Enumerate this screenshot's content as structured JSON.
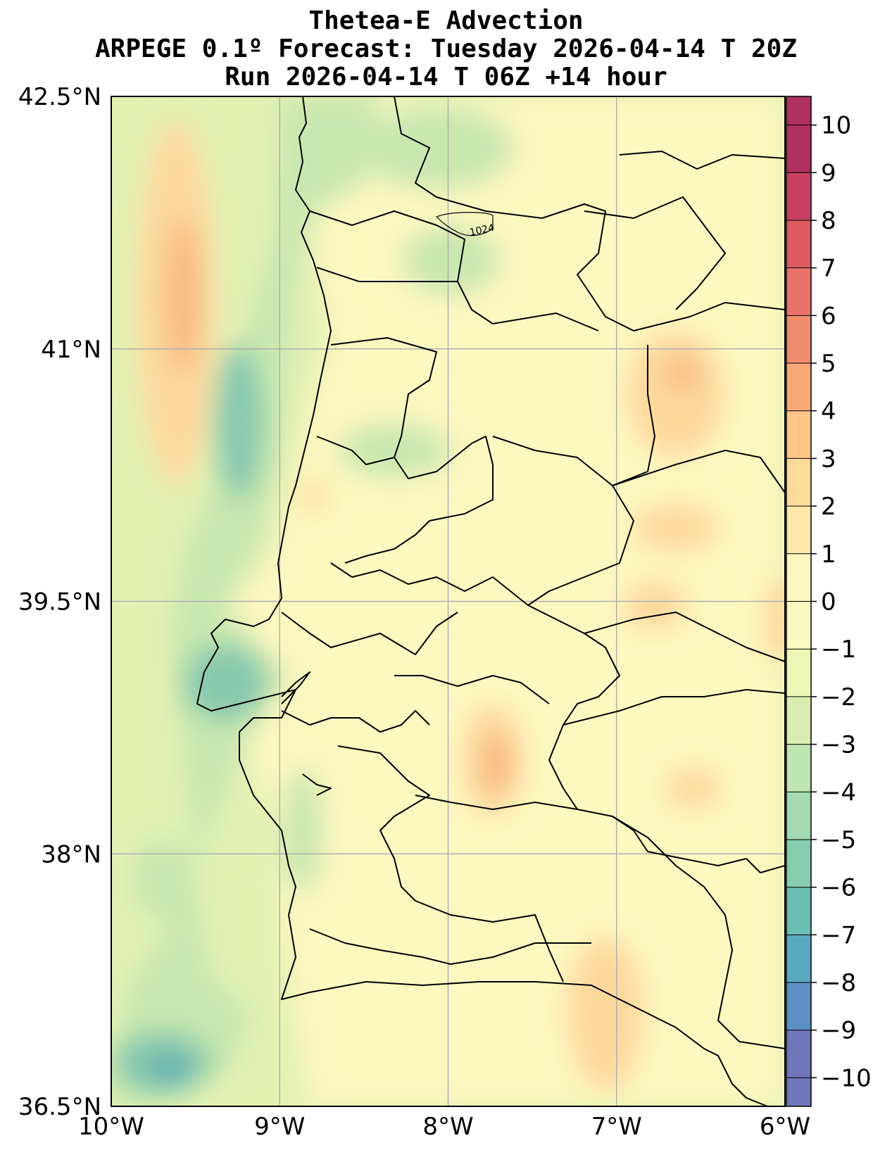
{
  "title": {
    "line1": "Thetea-E Advection",
    "line2": "ARPEGE 0.1º Forecast: Tuesday 2026-04-14 T 20Z",
    "line3": "Run 2026-04-14 T 06Z +14 hour"
  },
  "map": {
    "lon_range": [
      -10,
      -6
    ],
    "lat_range": [
      36.5,
      42.5
    ],
    "lon_ticks": [
      "10°W",
      "9°W",
      "8°W",
      "7°W",
      "6°W"
    ],
    "lat_ticks": [
      "42.5°N",
      "41°N",
      "39.5°N",
      "38°N",
      "36.5°N"
    ],
    "gridlines": true,
    "isobar_label": "1024"
  },
  "colorbar": {
    "levels": [
      10,
      9,
      8,
      7,
      6,
      5,
      4,
      3,
      2,
      1,
      0,
      -1,
      -2,
      -3,
      -4,
      -5,
      -6,
      -7,
      -8,
      -9,
      -10
    ],
    "labels": [
      "10",
      "9",
      "8",
      "7",
      "6",
      "5",
      "4",
      "3",
      "2",
      "1",
      "0",
      "−1",
      "−2",
      "−3",
      "−4",
      "−5",
      "−6",
      "−7",
      "−8",
      "−9",
      "−10"
    ],
    "colors": [
      "#b03060",
      "#c8405f",
      "#dc5b62",
      "#e9736a",
      "#f18c6c",
      "#f8a877",
      "#fdc587",
      "#fdd99a",
      "#fde8ac",
      "#fef6bf",
      "#f9f9c0",
      "#eef6b5",
      "#d8eeb0",
      "#bfe5b0",
      "#a3dab1",
      "#86cdb0",
      "#6cbdb2",
      "#5aa9c0",
      "#5b8fc4",
      "#6f77ba"
    ]
  },
  "colors": {
    "ocean_base": "#e3f1b3",
    "land_base": "#fdf7c0",
    "warm": "#fdd89b",
    "warm_strong": "#f8b57f",
    "cool": "#c8e8b0",
    "cool_strong": "#86c8ad",
    "cold": "#62b3b0"
  }
}
